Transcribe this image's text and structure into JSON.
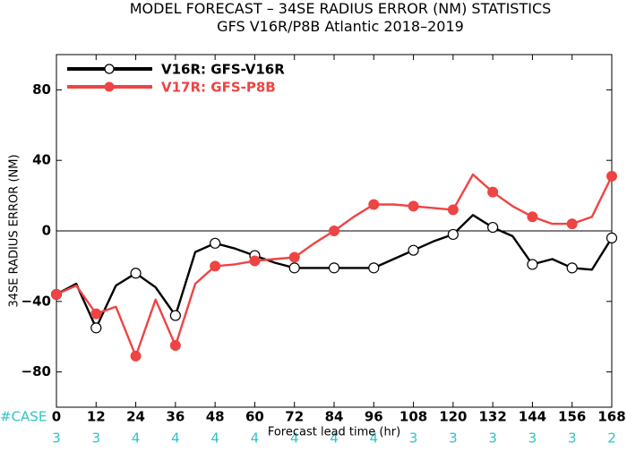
{
  "chart_data": {
    "type": "line",
    "title": "MODEL FORECAST – 34SE RADIUS ERROR (NM) STATISTICS",
    "subtitle": "GFS V16R/P8B Atlantic 2018–2019",
    "xlabel": "Forecast lead time (hr)",
    "ylabel": "34SE RADIUS ERROR (NM)",
    "xlim": [
      0,
      168
    ],
    "ylim": [
      -100,
      100
    ],
    "x_ticks": [
      0,
      12,
      24,
      36,
      48,
      60,
      72,
      84,
      96,
      108,
      120,
      132,
      144,
      156,
      168
    ],
    "x_tick_labels": [
      "0",
      "12",
      "24",
      "36",
      "48",
      "60",
      "72",
      "84",
      "96",
      "108",
      "120",
      "132",
      "144",
      "156",
      "168"
    ],
    "y_ticks": [
      -80,
      -40,
      0,
      40,
      80
    ],
    "y_tick_labels": [
      "−80",
      "−40",
      "0",
      "40",
      "80"
    ],
    "zero_line": true,
    "legend_position": "top-left",
    "case_label": "#CASE",
    "case_x": [
      0,
      12,
      24,
      36,
      48,
      60,
      72,
      84,
      96,
      108,
      120,
      132,
      144,
      156,
      168
    ],
    "case_counts": [
      "3",
      "3",
      "4",
      "4",
      "4",
      "4",
      "4",
      "4",
      "4",
      "3",
      "3",
      "3",
      "3",
      "3",
      "2"
    ],
    "series": [
      {
        "name": "V16R: GFS-V16R",
        "color": "#000000",
        "x": [
          0,
          6,
          12,
          18,
          24,
          30,
          36,
          42,
          48,
          54,
          60,
          66,
          72,
          78,
          84,
          90,
          96,
          102,
          108,
          114,
          120,
          126,
          132,
          138,
          144,
          150,
          156,
          162,
          168
        ],
        "y": [
          -36,
          -30,
          -55,
          -31,
          -24,
          -32,
          -48,
          -12,
          -7,
          -10,
          -14,
          -18,
          -21,
          -21,
          -21,
          -21,
          -21,
          -16,
          -11,
          -6,
          -2,
          9,
          2,
          -3,
          -19,
          -16,
          -21,
          -22,
          -4
        ],
        "markers_at": [
          0,
          12,
          24,
          36,
          48,
          60,
          72,
          84,
          96,
          108,
          120,
          132,
          144,
          156,
          168
        ]
      },
      {
        "name": "V17R: GFS-P8B",
        "color": "#ee4444",
        "x": [
          0,
          6,
          12,
          18,
          24,
          30,
          36,
          42,
          48,
          54,
          60,
          66,
          72,
          78,
          84,
          90,
          96,
          102,
          108,
          114,
          120,
          126,
          132,
          138,
          144,
          150,
          156,
          162,
          168
        ],
        "y": [
          -36,
          -31,
          -47,
          -43,
          -71,
          -39,
          -65,
          -30,
          -20,
          -19,
          -17,
          -16,
          -15,
          -7,
          0,
          8,
          15,
          15,
          14,
          13,
          12,
          32,
          22,
          14,
          8,
          4,
          4,
          8,
          31
        ],
        "markers_at": [
          0,
          12,
          24,
          36,
          48,
          60,
          72,
          84,
          96,
          108,
          120,
          132,
          144,
          156,
          168
        ]
      }
    ]
  }
}
